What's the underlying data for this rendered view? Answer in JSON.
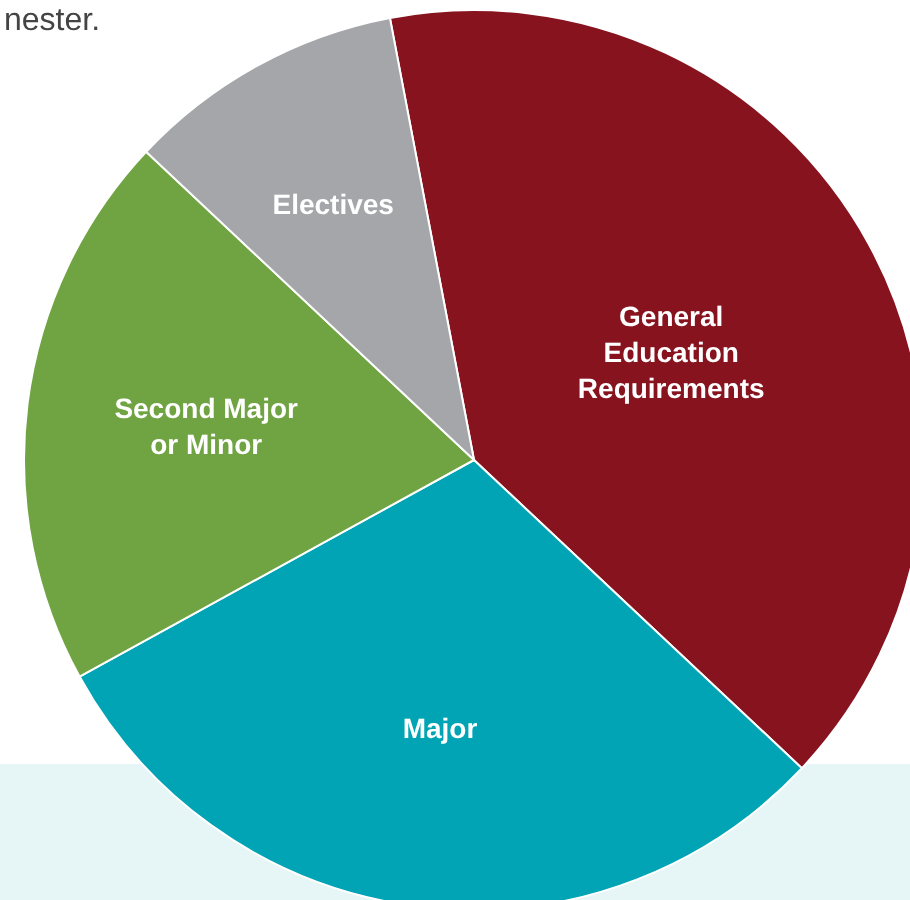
{
  "chart_data": {
    "type": "pie",
    "categories": [
      "General\nEducation\nRequirements",
      "Major",
      "Second Major\nor Minor",
      "Electives"
    ],
    "values": [
      40,
      30,
      20,
      10
    ],
    "colors": [
      "#87131f",
      "#00a4b4",
      "#70a442",
      "#a5a6aa"
    ],
    "annotations": [
      "nester."
    ]
  }
}
